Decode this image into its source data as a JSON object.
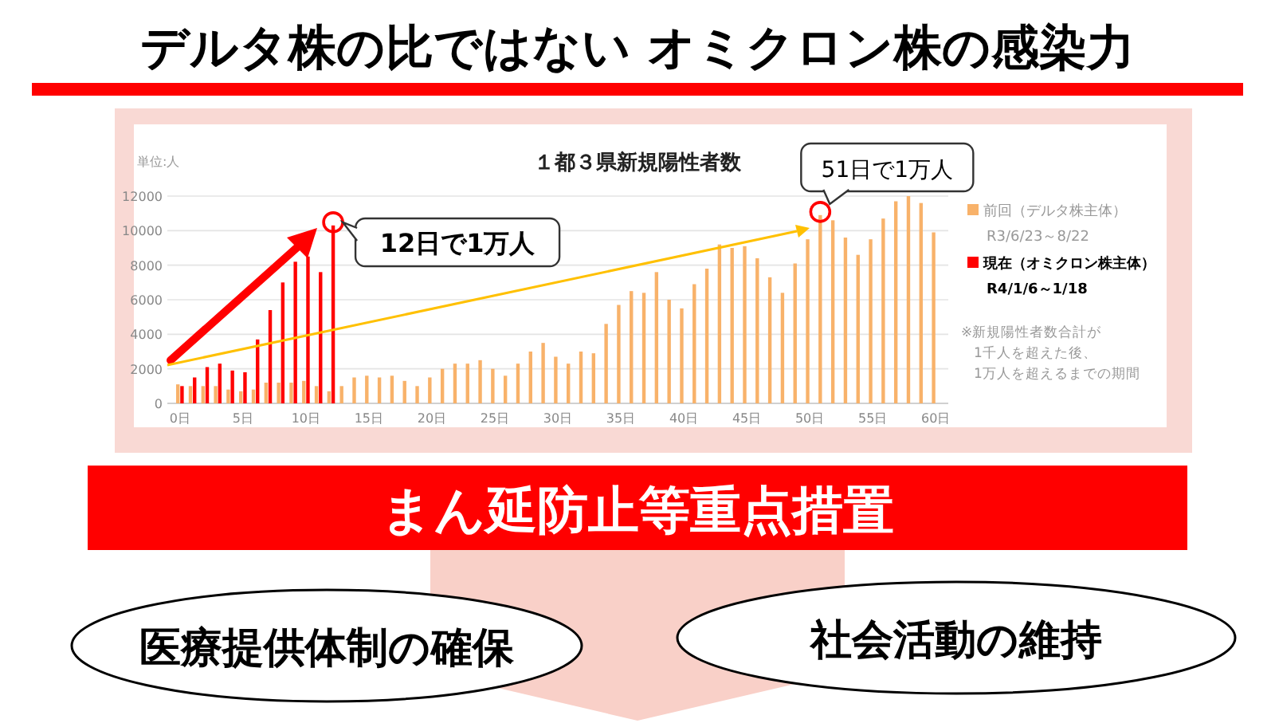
{
  "chart_data": {
    "type": "bar",
    "title": "１都３県新規陽性者数",
    "ylabel": "単位:人",
    "x": [
      0,
      1,
      2,
      3,
      4,
      5,
      6,
      7,
      8,
      9,
      10,
      11,
      12,
      13,
      14,
      15,
      16,
      17,
      18,
      19,
      20,
      21,
      22,
      23,
      24,
      25,
      26,
      27,
      28,
      29,
      30,
      31,
      32,
      33,
      34,
      35,
      36,
      37,
      38,
      39,
      40,
      41,
      42,
      43,
      44,
      45,
      46,
      47,
      48,
      49,
      50,
      51,
      52,
      53,
      54,
      55,
      56,
      57,
      58,
      59,
      60
    ],
    "xlim": [
      -1,
      61
    ],
    "xticks": [
      {
        "value": 0,
        "label": "0日"
      },
      {
        "value": 5,
        "label": "5日"
      },
      {
        "value": 10,
        "label": "10日"
      },
      {
        "value": 15,
        "label": "15日"
      },
      {
        "value": 20,
        "label": "20日"
      },
      {
        "value": 25,
        "label": "25日"
      },
      {
        "value": 30,
        "label": "30日"
      },
      {
        "value": 35,
        "label": "35日"
      },
      {
        "value": 40,
        "label": "40日"
      },
      {
        "value": 45,
        "label": "45日"
      },
      {
        "value": 50,
        "label": "50日"
      },
      {
        "value": 55,
        "label": "55日"
      },
      {
        "value": 60,
        "label": "60日"
      }
    ],
    "ylim": [
      0,
      12000
    ],
    "yticks": [
      0,
      2000,
      4000,
      6000,
      8000,
      10000,
      12000
    ],
    "grid": "y",
    "legend": "right",
    "series": [
      {
        "name": "前回（デルタ株主体）",
        "color": "#f8b26a",
        "values": [
          1100,
          1000,
          1000,
          1000,
          800,
          700,
          800,
          1200,
          1200,
          1200,
          1300,
          1000,
          700,
          1000,
          1500,
          1600,
          1500,
          1600,
          1300,
          1000,
          1500,
          2000,
          2300,
          2300,
          2500,
          2000,
          1600,
          2300,
          3000,
          3500,
          2700,
          2300,
          3000,
          2900,
          4600,
          5700,
          6500,
          6400,
          7600,
          6000,
          5500,
          6900,
          7800,
          9200,
          9000,
          9100,
          8400,
          7300,
          6400,
          8100,
          9500,
          10900,
          10600,
          9600,
          8600,
          9500,
          10700,
          11700,
          12000,
          11600,
          9900
        ]
      },
      {
        "name": "現在（オミクロン株主体）",
        "color": "#ff0000",
        "x": [
          0,
          1,
          2,
          3,
          4,
          5,
          6,
          7,
          8,
          9,
          10,
          11,
          12
        ],
        "values": [
          1000,
          1500,
          2100,
          2300,
          1900,
          1800,
          3700,
          5400,
          7000,
          8200,
          8500,
          7600,
          10300
        ]
      }
    ],
    "annotations": [
      {
        "text": "12日で1万人",
        "x": 12,
        "y": 10300
      },
      {
        "text": "51日で1万人",
        "x": 51,
        "y": 10900
      },
      "R3/6/23～8/22",
      "R4/1/6～1/18",
      "※新規陽性者数合計が",
      "1千人を超えた後、",
      "1万人を超えるまでの期間",
      "デルタ株の比ではない オミクロン株の感染力",
      "まん延防止等重点措置",
      "医療提供体制の確保",
      "社会活動の維持"
    ]
  }
}
